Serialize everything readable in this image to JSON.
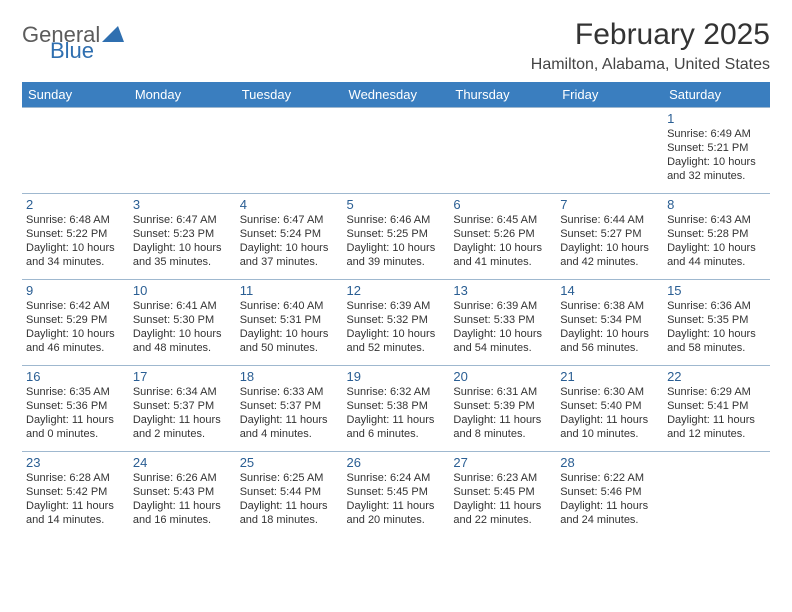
{
  "logo": {
    "general": "General",
    "blue": "Blue"
  },
  "title": "February 2025",
  "subtitle": "Hamilton, Alabama, United States",
  "colors": {
    "header_bg": "#3a7ebf",
    "header_text": "#ffffff",
    "border": "#9fb8cf",
    "daynum": "#2a5e93",
    "body_text": "#333333",
    "logo_gray": "#5c5c5c",
    "logo_blue": "#2f6fb0"
  },
  "days": [
    "Sunday",
    "Monday",
    "Tuesday",
    "Wednesday",
    "Thursday",
    "Friday",
    "Saturday"
  ],
  "first_weekday_index": 6,
  "cells": [
    {
      "n": 1,
      "sr": "6:49 AM",
      "ss": "5:21 PM",
      "dl": "10 hours and 32 minutes."
    },
    {
      "n": 2,
      "sr": "6:48 AM",
      "ss": "5:22 PM",
      "dl": "10 hours and 34 minutes."
    },
    {
      "n": 3,
      "sr": "6:47 AM",
      "ss": "5:23 PM",
      "dl": "10 hours and 35 minutes."
    },
    {
      "n": 4,
      "sr": "6:47 AM",
      "ss": "5:24 PM",
      "dl": "10 hours and 37 minutes."
    },
    {
      "n": 5,
      "sr": "6:46 AM",
      "ss": "5:25 PM",
      "dl": "10 hours and 39 minutes."
    },
    {
      "n": 6,
      "sr": "6:45 AM",
      "ss": "5:26 PM",
      "dl": "10 hours and 41 minutes."
    },
    {
      "n": 7,
      "sr": "6:44 AM",
      "ss": "5:27 PM",
      "dl": "10 hours and 42 minutes."
    },
    {
      "n": 8,
      "sr": "6:43 AM",
      "ss": "5:28 PM",
      "dl": "10 hours and 44 minutes."
    },
    {
      "n": 9,
      "sr": "6:42 AM",
      "ss": "5:29 PM",
      "dl": "10 hours and 46 minutes."
    },
    {
      "n": 10,
      "sr": "6:41 AM",
      "ss": "5:30 PM",
      "dl": "10 hours and 48 minutes."
    },
    {
      "n": 11,
      "sr": "6:40 AM",
      "ss": "5:31 PM",
      "dl": "10 hours and 50 minutes."
    },
    {
      "n": 12,
      "sr": "6:39 AM",
      "ss": "5:32 PM",
      "dl": "10 hours and 52 minutes."
    },
    {
      "n": 13,
      "sr": "6:39 AM",
      "ss": "5:33 PM",
      "dl": "10 hours and 54 minutes."
    },
    {
      "n": 14,
      "sr": "6:38 AM",
      "ss": "5:34 PM",
      "dl": "10 hours and 56 minutes."
    },
    {
      "n": 15,
      "sr": "6:36 AM",
      "ss": "5:35 PM",
      "dl": "10 hours and 58 minutes."
    },
    {
      "n": 16,
      "sr": "6:35 AM",
      "ss": "5:36 PM",
      "dl": "11 hours and 0 minutes."
    },
    {
      "n": 17,
      "sr": "6:34 AM",
      "ss": "5:37 PM",
      "dl": "11 hours and 2 minutes."
    },
    {
      "n": 18,
      "sr": "6:33 AM",
      "ss": "5:37 PM",
      "dl": "11 hours and 4 minutes."
    },
    {
      "n": 19,
      "sr": "6:32 AM",
      "ss": "5:38 PM",
      "dl": "11 hours and 6 minutes."
    },
    {
      "n": 20,
      "sr": "6:31 AM",
      "ss": "5:39 PM",
      "dl": "11 hours and 8 minutes."
    },
    {
      "n": 21,
      "sr": "6:30 AM",
      "ss": "5:40 PM",
      "dl": "11 hours and 10 minutes."
    },
    {
      "n": 22,
      "sr": "6:29 AM",
      "ss": "5:41 PM",
      "dl": "11 hours and 12 minutes."
    },
    {
      "n": 23,
      "sr": "6:28 AM",
      "ss": "5:42 PM",
      "dl": "11 hours and 14 minutes."
    },
    {
      "n": 24,
      "sr": "6:26 AM",
      "ss": "5:43 PM",
      "dl": "11 hours and 16 minutes."
    },
    {
      "n": 25,
      "sr": "6:25 AM",
      "ss": "5:44 PM",
      "dl": "11 hours and 18 minutes."
    },
    {
      "n": 26,
      "sr": "6:24 AM",
      "ss": "5:45 PM",
      "dl": "11 hours and 20 minutes."
    },
    {
      "n": 27,
      "sr": "6:23 AM",
      "ss": "5:45 PM",
      "dl": "11 hours and 22 minutes."
    },
    {
      "n": 28,
      "sr": "6:22 AM",
      "ss": "5:46 PM",
      "dl": "11 hours and 24 minutes."
    }
  ],
  "labels": {
    "sunrise": "Sunrise: ",
    "sunset": "Sunset: ",
    "daylight": "Daylight: "
  }
}
